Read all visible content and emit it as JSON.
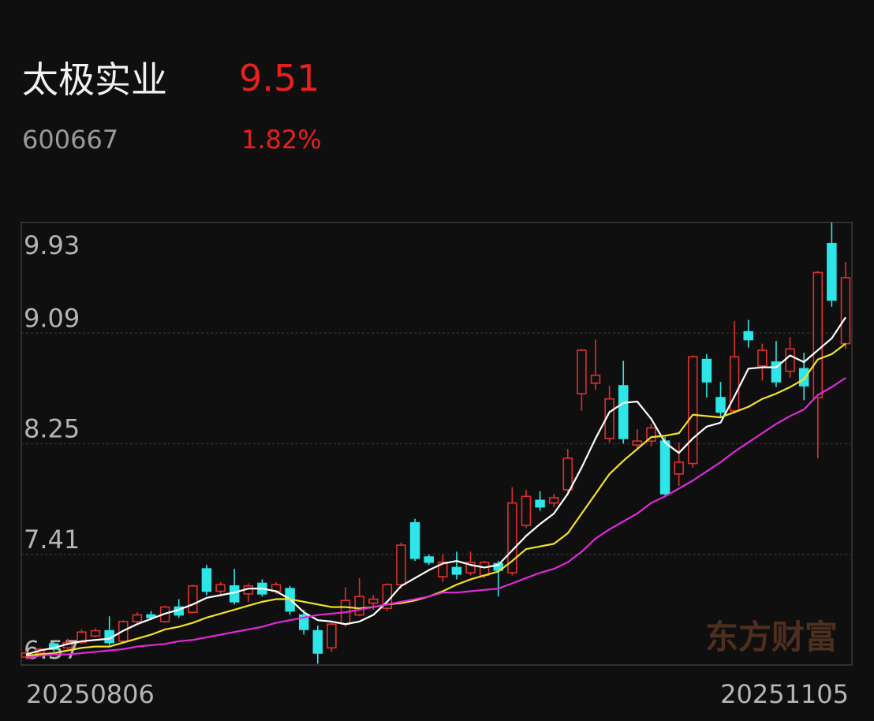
{
  "header": {
    "name": "太极实业",
    "price": 9.51,
    "code": "600667",
    "change": {
      "value": 1.82,
      "label": "1.82%"
    }
  },
  "chart_data": {
    "type": "candlestick",
    "categories": [
      "20250806",
      null,
      null,
      null,
      null,
      null,
      null,
      null,
      null,
      null,
      null,
      null,
      null,
      null,
      null,
      null,
      null,
      null,
      null,
      null,
      null,
      null,
      null,
      null,
      null,
      null,
      null,
      null,
      null,
      null,
      null,
      null,
      null,
      null,
      null,
      null,
      null,
      null,
      null,
      null,
      null,
      null,
      null,
      null,
      null,
      null,
      null,
      null,
      null,
      null,
      null,
      null,
      null,
      null,
      null,
      null,
      null,
      null,
      null,
      "20251105"
    ],
    "open": [
      6.63,
      6.66,
      6.73,
      6.7,
      6.74,
      6.79,
      6.83,
      6.75,
      6.9,
      6.95,
      6.9,
      7.01,
      6.97,
      7.3,
      7.13,
      7.17,
      7.11,
      7.19,
      7.13,
      7.15,
      6.95,
      6.83,
      6.7,
      6.88,
      6.95,
      7.04,
      7.0,
      7.18,
      7.65,
      7.39,
      7.24,
      7.31,
      7.27,
      7.25,
      7.34,
      7.27,
      7.63,
      7.82,
      7.8,
      7.9,
      8.63,
      8.71,
      8.29,
      8.69,
      8.24,
      8.27,
      8.27,
      8.02,
      8.1,
      8.89,
      8.6,
      8.5,
      9.1,
      8.84,
      8.87,
      8.8,
      8.82,
      8.6,
      9.77,
      9.01
    ],
    "high": [
      6.68,
      6.7,
      6.75,
      6.77,
      6.84,
      6.85,
      6.94,
      6.91,
      6.97,
      6.98,
      7.02,
      7.07,
      7.18,
      7.33,
      7.2,
      7.3,
      7.19,
      7.22,
      7.2,
      7.17,
      6.99,
      6.87,
      6.9,
      7.16,
      7.23,
      7.1,
      7.19,
      7.5,
      7.68,
      7.41,
      7.41,
      7.43,
      7.43,
      7.36,
      7.36,
      7.92,
      7.9,
      7.89,
      7.87,
      8.21,
      8.97,
      9.04,
      8.69,
      8.88,
      8.36,
      8.4,
      8.3,
      8.26,
      8.92,
      8.93,
      8.72,
      9.18,
      9.19,
      9.01,
      9.03,
      9.06,
      8.94,
      9.56,
      9.93,
      9.63
    ],
    "low": [
      6.62,
      6.64,
      6.67,
      6.69,
      6.73,
      6.78,
      6.72,
      6.74,
      6.88,
      6.91,
      6.89,
      6.93,
      6.96,
      7.1,
      7.11,
      7.03,
      7.05,
      7.09,
      7.11,
      6.95,
      6.8,
      6.58,
      6.67,
      6.86,
      6.94,
      6.99,
      6.98,
      7.15,
      7.36,
      7.33,
      7.2,
      7.22,
      7.25,
      7.23,
      7.09,
      7.25,
      7.61,
      7.74,
      7.77,
      7.88,
      8.5,
      8.66,
      8.26,
      8.25,
      8.2,
      8.23,
      7.86,
      7.93,
      8.07,
      8.6,
      8.45,
      8.48,
      8.98,
      8.73,
      8.68,
      8.75,
      8.58,
      8.14,
      9.29,
      8.97
    ],
    "close": [
      6.66,
      6.69,
      6.69,
      6.74,
      6.82,
      6.83,
      6.74,
      6.9,
      6.95,
      6.93,
      7.01,
      6.95,
      7.17,
      7.13,
      7.18,
      7.05,
      7.17,
      7.11,
      7.18,
      6.98,
      6.84,
      6.66,
      6.88,
      7.06,
      7.09,
      7.07,
      7.18,
      7.48,
      7.38,
      7.35,
      7.35,
      7.26,
      7.35,
      7.35,
      7.29,
      7.8,
      7.85,
      7.77,
      7.84,
      8.14,
      8.96,
      8.77,
      8.59,
      8.29,
      8.27,
      8.37,
      7.87,
      8.11,
      8.91,
      8.72,
      8.49,
      8.91,
      9.04,
      8.96,
      8.72,
      8.97,
      8.69,
      9.55,
      9.34,
      9.51
    ],
    "up_color": "#e0302e",
    "down_color": "#2ee6e8",
    "series": [
      {
        "color": "#ffffff",
        "values": [
          6.65,
          6.68,
          6.7,
          6.73,
          6.75,
          6.76,
          6.77,
          6.83,
          6.88,
          6.92,
          6.96,
          6.99,
          7.03,
          7.08,
          7.1,
          7.12,
          7.15,
          7.15,
          7.13,
          7.07,
          6.97,
          6.91,
          6.9,
          6.88,
          6.9,
          6.95,
          7.05,
          7.17,
          7.23,
          7.29,
          7.34,
          7.36,
          7.33,
          7.31,
          7.33,
          7.44,
          7.55,
          7.64,
          7.72,
          7.87,
          8.07,
          8.29,
          8.49,
          8.56,
          8.57,
          8.44,
          8.26,
          8.18,
          8.29,
          8.38,
          8.41,
          8.61,
          8.82,
          8.83,
          8.83,
          8.92,
          8.87,
          8.96,
          9.05,
          9.21
        ]
      },
      {
        "color": "#f2e22a",
        "values": [
          6.64,
          6.65,
          6.66,
          6.68,
          6.7,
          6.71,
          6.71,
          6.74,
          6.77,
          6.8,
          6.84,
          6.86,
          6.89,
          6.93,
          6.96,
          6.99,
          7.02,
          7.05,
          7.07,
          7.07,
          7.05,
          7.03,
          7.01,
          7.01,
          7.0,
          7.01,
          7.03,
          7.04,
          7.06,
          7.09,
          7.13,
          7.18,
          7.22,
          7.25,
          7.28,
          7.36,
          7.45,
          7.47,
          7.49,
          7.57,
          7.72,
          7.87,
          8.02,
          8.12,
          8.21,
          8.3,
          8.31,
          8.33,
          8.47,
          8.46,
          8.45,
          8.49,
          8.53,
          8.59,
          8.63,
          8.68,
          8.74,
          8.89,
          8.93,
          9.01
        ]
      },
      {
        "color": "#e02ad8",
        "values": [
          6.62,
          6.64,
          6.65,
          6.65,
          6.66,
          6.67,
          6.68,
          6.69,
          6.71,
          6.72,
          6.73,
          6.75,
          6.76,
          6.78,
          6.8,
          6.82,
          6.84,
          6.86,
          6.89,
          6.91,
          6.93,
          6.95,
          6.96,
          6.97,
          6.99,
          7.01,
          7.03,
          7.05,
          7.07,
          7.09,
          7.12,
          7.12,
          7.13,
          7.14,
          7.15,
          7.19,
          7.23,
          7.27,
          7.3,
          7.35,
          7.43,
          7.53,
          7.6,
          7.66,
          7.72,
          7.8,
          7.85,
          7.91,
          7.97,
          8.04,
          8.11,
          8.19,
          8.26,
          8.33,
          8.4,
          8.46,
          8.51,
          8.62,
          8.68,
          8.75
        ]
      }
    ],
    "ylim": [
      6.57,
      9.93
    ],
    "yticks": [
      9.93,
      9.09,
      8.25,
      7.41,
      6.57
    ],
    "grid": true,
    "watermark": "东方财富"
  }
}
